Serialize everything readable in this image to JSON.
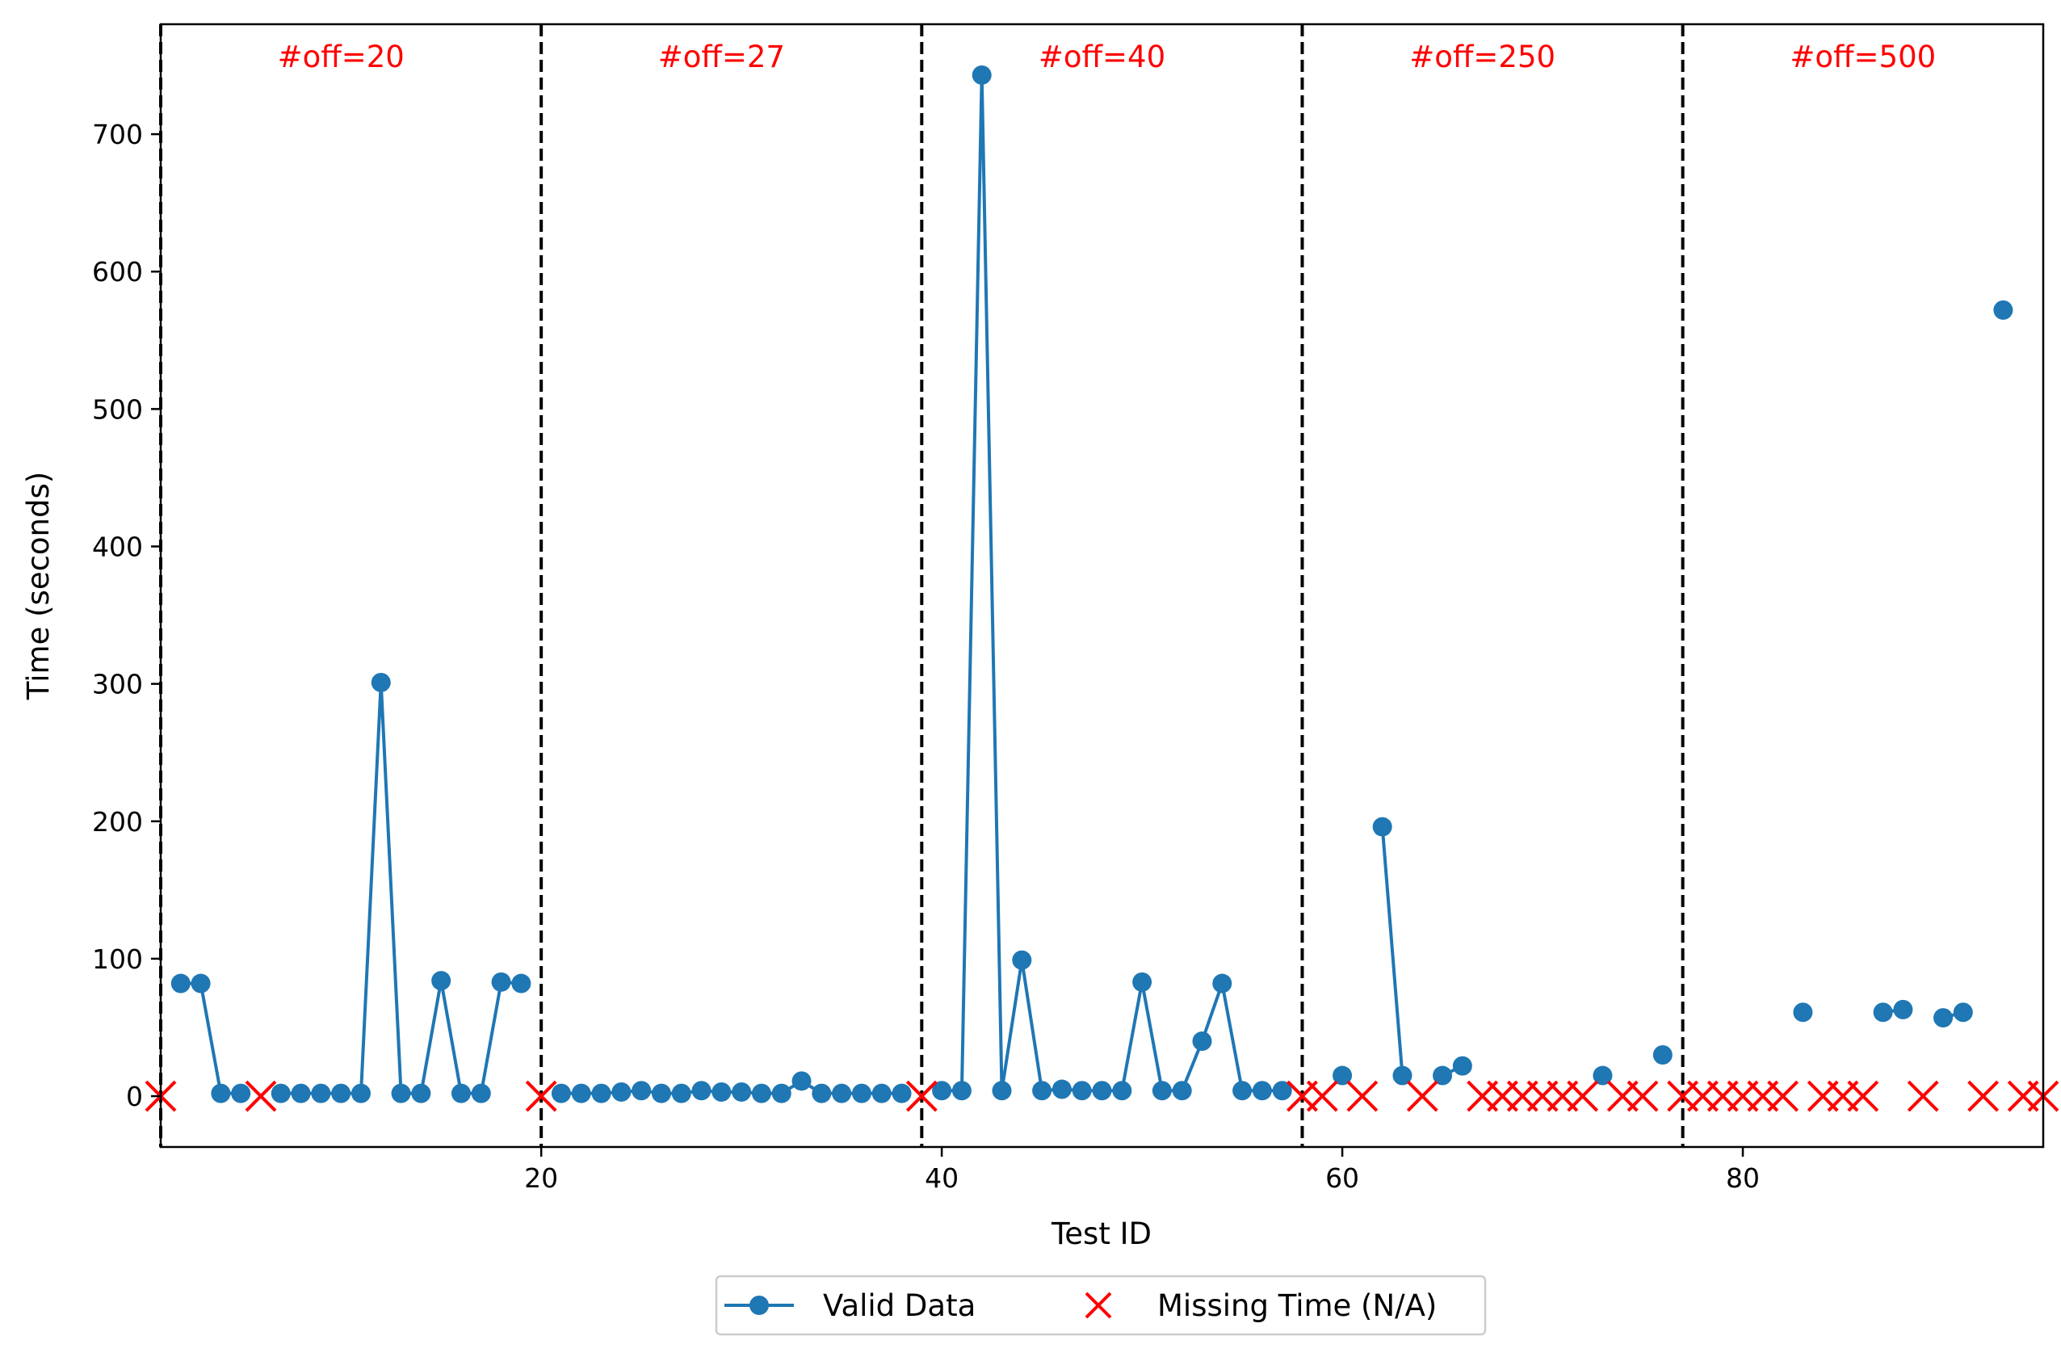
{
  "chart_data": {
    "type": "line",
    "xlabel": "Test ID",
    "ylabel": "Time (seconds)",
    "xlim": [
      1,
      95
    ],
    "ylim": [
      -37,
      780
    ],
    "xticks": [
      20,
      40,
      60,
      80
    ],
    "yticks": [
      0,
      100,
      200,
      300,
      400,
      500,
      600,
      700
    ],
    "colors": {
      "valid": "#1f77b4",
      "missing": "#ff0000",
      "divider": "#000000",
      "section_label": "#ff0000"
    },
    "dividers": [
      1,
      20,
      39,
      58,
      77
    ],
    "sections": [
      {
        "label": "#off=20",
        "center": 10
      },
      {
        "label": "#off=27",
        "center": 29
      },
      {
        "label": "#off=40",
        "center": 48
      },
      {
        "label": "#off=250",
        "center": 67
      },
      {
        "label": "#off=500",
        "center": 86
      }
    ],
    "series": [
      {
        "name": "Valid Data",
        "style": "line-marker",
        "segments": [
          [
            [
              2,
              82
            ],
            [
              3,
              82
            ],
            [
              4,
              2
            ],
            [
              5,
              2
            ]
          ],
          [
            [
              7,
              2
            ],
            [
              8,
              2
            ],
            [
              9,
              2
            ],
            [
              10,
              2
            ],
            [
              11,
              2
            ],
            [
              12,
              301
            ],
            [
              13,
              2
            ],
            [
              14,
              2
            ],
            [
              15,
              84
            ],
            [
              16,
              2
            ],
            [
              17,
              2
            ],
            [
              18,
              83
            ],
            [
              19,
              82
            ]
          ],
          [
            [
              21,
              2
            ],
            [
              22,
              2
            ],
            [
              23,
              2
            ],
            [
              24,
              3
            ],
            [
              25,
              4
            ],
            [
              26,
              2
            ],
            [
              27,
              2
            ],
            [
              28,
              4
            ],
            [
              29,
              3
            ],
            [
              30,
              3
            ],
            [
              31,
              2
            ],
            [
              32,
              2
            ],
            [
              33,
              11
            ],
            [
              34,
              2
            ],
            [
              35,
              2
            ],
            [
              36,
              2
            ],
            [
              37,
              2
            ],
            [
              38,
              2
            ]
          ],
          [
            [
              40,
              4
            ],
            [
              41,
              4
            ],
            [
              42,
              743
            ],
            [
              43,
              4
            ],
            [
              44,
              99
            ],
            [
              45,
              4
            ],
            [
              46,
              5
            ],
            [
              47,
              4
            ],
            [
              48,
              4
            ],
            [
              49,
              4
            ],
            [
              50,
              83
            ],
            [
              51,
              4
            ],
            [
              52,
              4
            ],
            [
              53,
              40
            ],
            [
              54,
              82
            ],
            [
              55,
              4
            ],
            [
              56,
              4
            ],
            [
              57,
              4
            ]
          ],
          [
            [
              60,
              15
            ]
          ],
          [
            [
              62,
              196
            ],
            [
              63,
              15
            ]
          ],
          [
            [
              65,
              15
            ],
            [
              66,
              22
            ]
          ],
          [
            [
              73,
              15
            ]
          ],
          [
            [
              76,
              30
            ]
          ],
          [
            [
              83,
              61
            ]
          ],
          [
            [
              87,
              61
            ],
            [
              88,
              63
            ]
          ],
          [
            [
              90,
              57
            ],
            [
              91,
              61
            ]
          ],
          [
            [
              93,
              572
            ]
          ]
        ]
      },
      {
        "name": "Missing Time (N/A)",
        "style": "x-marker",
        "x": [
          1,
          6,
          20,
          39,
          58,
          59,
          61,
          64,
          67,
          68,
          69,
          70,
          71,
          72,
          74,
          75,
          77,
          78,
          79,
          80,
          81,
          82,
          84,
          85,
          86,
          89,
          92,
          94,
          95
        ],
        "y": 0
      }
    ],
    "legend": {
      "placement": "bottom-center",
      "entries": [
        "Valid Data",
        "Missing Time (N/A)"
      ]
    }
  }
}
